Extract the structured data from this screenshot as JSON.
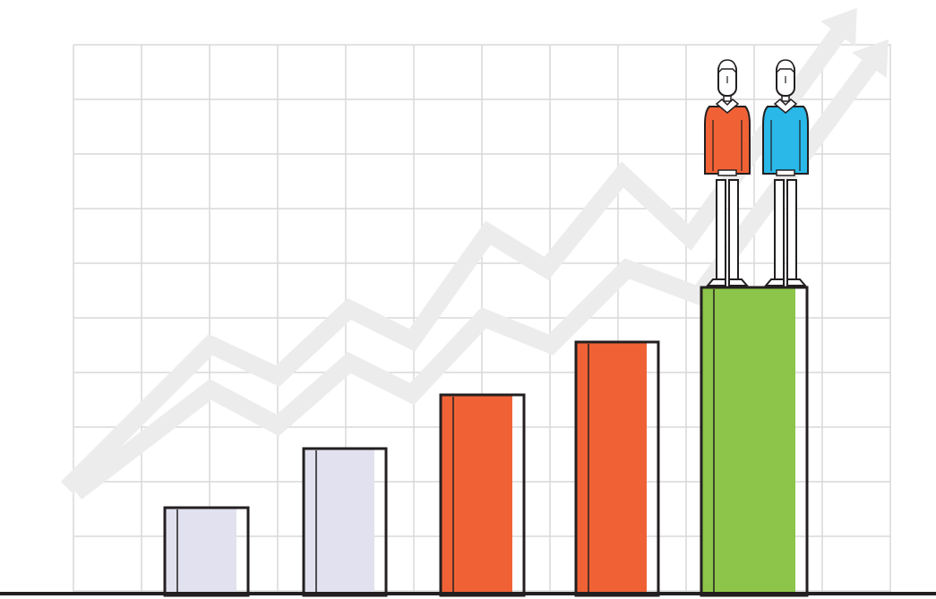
{
  "illustration": {
    "bars": [
      {
        "value": 96,
        "color": "#e1e1ef"
      },
      {
        "value": 162,
        "color": "#e1e1ef"
      },
      {
        "value": 222,
        "color": "#f06236"
      },
      {
        "value": 281,
        "color": "#f06236"
      },
      {
        "value": 342,
        "color": "#8dc54a"
      }
    ],
    "people": [
      {
        "shirt_color": "#f06236"
      },
      {
        "shirt_color": "#29b8e8"
      }
    ],
    "colors": {
      "outline": "#231f20",
      "grid": "#d9d9d9",
      "arrow": "#ececec",
      "background": "#ffffff"
    },
    "icons": [
      "trend-arrow-icon",
      "person-icon"
    ]
  }
}
